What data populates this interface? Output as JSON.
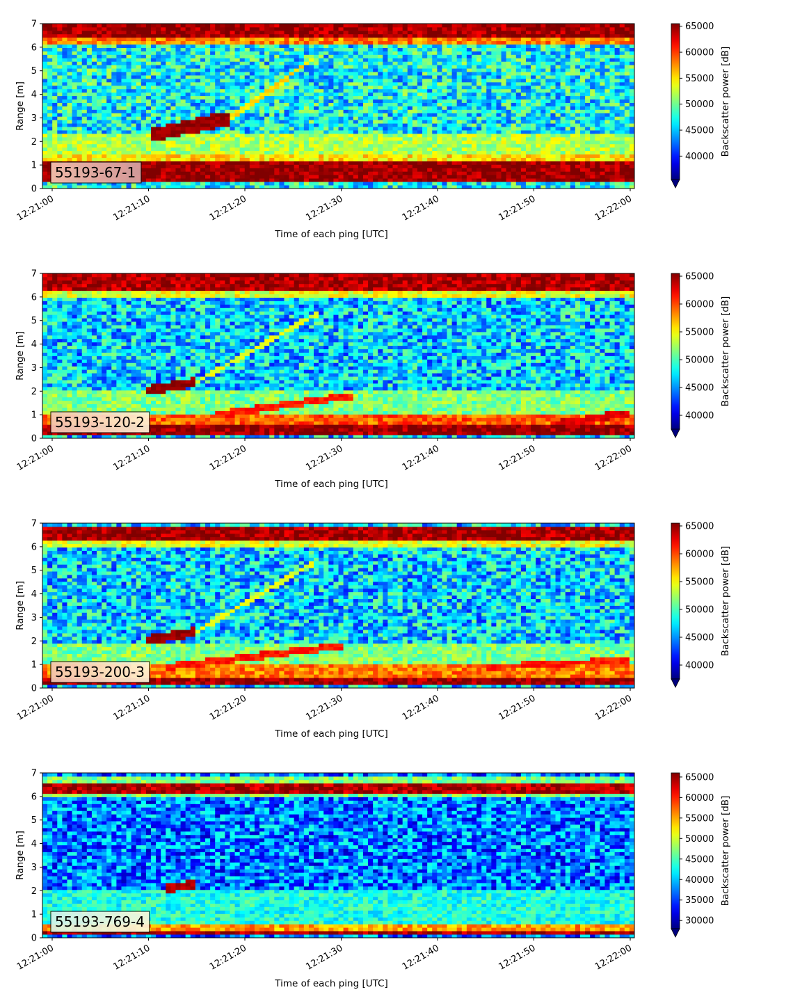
{
  "chart_data": [
    {
      "type": "heatmap",
      "label": "55193-67-1",
      "xlabel": "Time of each ping [UTC]",
      "ylabel": "Range [m]",
      "x_ticks": [
        "12:21:00",
        "12:21:10",
        "12:21:20",
        "12:21:30",
        "12:21:40",
        "12:21:50",
        "12:22:00"
      ],
      "xlim": [
        "12:21:00",
        "12:22:00"
      ],
      "ylim": [
        0,
        7
      ],
      "y_ticks": [
        "0",
        "1",
        "2",
        "3",
        "4",
        "5",
        "6",
        "7"
      ],
      "colorbar": {
        "label": "Backscatter power [dB]",
        "range": [
          35500,
          65500
        ],
        "ticks": [
          "40000",
          "45000",
          "50000",
          "55000",
          "60000",
          "65000"
        ],
        "extend": "min"
      },
      "colormap": "jet",
      "background_level": 0.38,
      "bands": [
        {
          "y0": 0.25,
          "y1": 1.1,
          "level": 0.98
        },
        {
          "y0": 6.35,
          "y1": 7.0,
          "level": 0.97
        },
        {
          "y0": 6.1,
          "y1": 6.35,
          "level": 0.75
        },
        {
          "y0": 1.1,
          "y1": 1.4,
          "level": 0.65
        },
        {
          "y0": 1.4,
          "y1": 2.3,
          "level": 0.55
        }
      ],
      "tracks": [
        {
          "t0": 10.5,
          "t1": 18.5,
          "y0": 2.3,
          "y1": 3.0,
          "width": 0.5,
          "level": 0.98
        },
        {
          "t0": 18.5,
          "t1": 27.0,
          "y0": 3.0,
          "y1": 5.5,
          "width": 0.15,
          "level": 0.65
        }
      ]
    },
    {
      "type": "heatmap",
      "label": "55193-120-2",
      "xlabel": "Time of each ping [UTC]",
      "ylabel": "Range [m]",
      "x_ticks": [
        "12:21:00",
        "12:21:10",
        "12:21:20",
        "12:21:30",
        "12:21:40",
        "12:21:50",
        "12:22:00"
      ],
      "xlim": [
        "12:21:00",
        "12:22:00"
      ],
      "ylim": [
        0,
        7
      ],
      "y_ticks": [
        "0",
        "1",
        "2",
        "3",
        "4",
        "5",
        "6",
        "7"
      ],
      "colorbar": {
        "label": "Backscatter power [dB]",
        "range": [
          37500,
          65500
        ],
        "ticks": [
          "40000",
          "45000",
          "50000",
          "55000",
          "60000",
          "65000"
        ],
        "extend": "min"
      },
      "colormap": "jet",
      "background_level": 0.33,
      "bands": [
        {
          "y0": 0.1,
          "y1": 0.55,
          "level": 0.98
        },
        {
          "y0": 0.55,
          "y1": 1.0,
          "level": 0.78
        },
        {
          "y0": 6.3,
          "y1": 7.0,
          "level": 0.96
        },
        {
          "y0": 6.0,
          "y1": 6.3,
          "level": 0.6
        },
        {
          "y0": 1.0,
          "y1": 2.0,
          "level": 0.5
        }
      ],
      "tracks": [
        {
          "t0": 9.5,
          "t1": 15.0,
          "y0": 2.0,
          "y1": 2.4,
          "width": 0.3,
          "level": 0.98
        },
        {
          "t0": 15.0,
          "t1": 27.5,
          "y0": 2.4,
          "y1": 5.3,
          "width": 0.12,
          "level": 0.6
        },
        {
          "t0": 17.0,
          "t1": 31.0,
          "y0": 1.0,
          "y1": 1.8,
          "width": 0.2,
          "level": 0.85
        },
        {
          "t0": 52.0,
          "t1": 60.0,
          "y0": 0.6,
          "y1": 1.1,
          "width": 0.2,
          "level": 0.9
        }
      ]
    },
    {
      "type": "heatmap",
      "label": "55193-200-3",
      "xlabel": "Time of each ping [UTC]",
      "ylabel": "Range [m]",
      "x_ticks": [
        "12:21:00",
        "12:21:10",
        "12:21:20",
        "12:21:30",
        "12:21:40",
        "12:21:50",
        "12:22:00"
      ],
      "xlim": [
        "12:21:00",
        "12:22:00"
      ],
      "ylim": [
        0,
        7
      ],
      "y_ticks": [
        "0",
        "1",
        "2",
        "3",
        "4",
        "5",
        "6",
        "7"
      ],
      "colorbar": {
        "label": "Backscatter power [dB]",
        "range": [
          37500,
          65500
        ],
        "ticks": [
          "40000",
          "45000",
          "50000",
          "55000",
          "60000",
          "65000"
        ],
        "extend": "min"
      },
      "colormap": "jet",
      "background_level": 0.33,
      "bands": [
        {
          "y0": 0.1,
          "y1": 0.45,
          "level": 0.98
        },
        {
          "y0": 0.45,
          "y1": 0.95,
          "level": 0.75
        },
        {
          "y0": 6.3,
          "y1": 6.9,
          "level": 0.97
        },
        {
          "y0": 6.0,
          "y1": 6.3,
          "level": 0.6
        },
        {
          "y0": 0.95,
          "y1": 1.9,
          "level": 0.5
        }
      ],
      "tracks": [
        {
          "t0": 9.5,
          "t1": 15.0,
          "y0": 2.0,
          "y1": 2.4,
          "width": 0.3,
          "level": 0.98
        },
        {
          "t0": 15.0,
          "t1": 27.0,
          "y0": 2.4,
          "y1": 5.3,
          "width": 0.12,
          "level": 0.6
        },
        {
          "t0": 12.0,
          "t1": 30.0,
          "y0": 0.9,
          "y1": 1.8,
          "width": 0.2,
          "level": 0.85
        },
        {
          "t0": 45.0,
          "t1": 60.0,
          "y0": 0.9,
          "y1": 1.2,
          "width": 0.15,
          "level": 0.85
        }
      ]
    },
    {
      "type": "heatmap",
      "label": "55193-769-4",
      "xlabel": "Time of each ping [UTC]",
      "ylabel": "Range [m]",
      "x_ticks": [
        "12:21:00",
        "12:21:10",
        "12:21:20",
        "12:21:30",
        "12:21:40",
        "12:21:50",
        "12:22:00"
      ],
      "xlim": [
        "12:21:00",
        "12:22:00"
      ],
      "ylim": [
        0,
        7
      ],
      "y_ticks": [
        "0",
        "1",
        "2",
        "3",
        "4",
        "5",
        "6",
        "7"
      ],
      "colorbar": {
        "label": "Backscatter power [dB]",
        "range": [
          28000,
          66000
        ],
        "ticks": [
          "30000",
          "35000",
          "40000",
          "45000",
          "50000",
          "55000",
          "60000",
          "65000"
        ],
        "extend": "min"
      },
      "colormap": "jet",
      "background_level": 0.24,
      "bands": [
        {
          "y0": 0.15,
          "y1": 0.35,
          "level": 0.97
        },
        {
          "y0": 0.35,
          "y1": 0.55,
          "level": 0.72
        },
        {
          "y0": 6.15,
          "y1": 6.55,
          "level": 0.95
        },
        {
          "y0": 6.55,
          "y1": 6.8,
          "level": 0.5
        },
        {
          "y0": 6.0,
          "y1": 6.15,
          "level": 0.5
        },
        {
          "y0": 0.55,
          "y1": 2.0,
          "level": 0.4
        }
      ],
      "tracks": [
        {
          "t0": 12.0,
          "t1": 15.0,
          "y0": 2.1,
          "y1": 2.3,
          "width": 0.25,
          "level": 0.95
        }
      ]
    }
  ]
}
